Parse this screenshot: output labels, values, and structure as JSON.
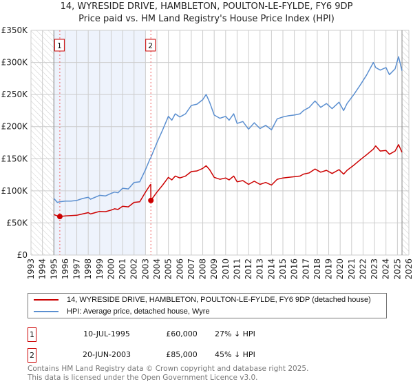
{
  "title_line1": "14, WYRESIDE DRIVE, HAMBLETON, POULTON-LE-FYLDE, FY6 9DP",
  "title_line2": "Price paid vs. HM Land Registry's House Price Index (HPI)",
  "chart_data": {
    "type": "line",
    "xlim": [
      1993,
      2026
    ],
    "ylim": [
      0,
      350000
    ],
    "x_ticks": [
      1993,
      1994,
      1995,
      1996,
      1997,
      1998,
      1999,
      2000,
      2001,
      2002,
      2003,
      2004,
      2005,
      2006,
      2007,
      2008,
      2009,
      2010,
      2011,
      2012,
      2013,
      2014,
      2015,
      2016,
      2017,
      2018,
      2019,
      2020,
      2021,
      2022,
      2023,
      2024,
      2025,
      2026
    ],
    "y_ticks": [
      0,
      50000,
      100000,
      150000,
      200000,
      250000,
      300000,
      350000
    ],
    "y_tick_labels": [
      "£0",
      "£50K",
      "£100K",
      "£150K",
      "£200K",
      "£250K",
      "£300K",
      "£350K"
    ],
    "grid": true,
    "data_range": [
      1995.0,
      2025.4
    ],
    "shaded_range": [
      1995.0,
      2003.0
    ],
    "colors": {
      "property": "#cc0000",
      "hpi": "#5b8fd0",
      "shade": "#eef3fc",
      "grid": "#cccccc"
    },
    "series": [
      {
        "name": "14, WYRESIDE DRIVE, HAMBLETON, POULTON-LE-FYLDE, FY6 9DP (detached house)",
        "x": [
          1995.0,
          1995.3,
          1995.52,
          1996,
          1996.5,
          1997,
          1997.5,
          1998,
          1998.2,
          1998.6,
          1999,
          1999.5,
          2000,
          2000.3,
          2000.6,
          2001,
          2001.5,
          2002,
          2002.5,
          2003,
          2003.4,
          2003.46,
          2003.47,
          2004,
          2004.5,
          2005,
          2005.3,
          2005.6,
          2006,
          2006.5,
          2007,
          2007.5,
          2008,
          2008.3,
          2008.6,
          2009,
          2009.5,
          2010,
          2010.3,
          2010.7,
          2011,
          2011.5,
          2012,
          2012.5,
          2013,
          2013.5,
          2014,
          2014.5,
          2015,
          2015.5,
          2016,
          2016.5,
          2016.8,
          2017.3,
          2017.8,
          2018.3,
          2018.8,
          2019.3,
          2019.9,
          2020.3,
          2020.6,
          2021.2,
          2021.8,
          2022.3,
          2022.9,
          2023.1,
          2023.5,
          2024,
          2024.3,
          2024.8,
          2025.1,
          2025.4
        ],
        "y": [
          63000,
          61000,
          60000,
          61000,
          61500,
          62000,
          64000,
          66000,
          64000,
          66000,
          68000,
          67500,
          70000,
          72000,
          71000,
          76000,
          75000,
          82000,
          83000,
          98000,
          109000,
          110000,
          85000,
          98000,
          109000,
          121000,
          117000,
          123000,
          120000,
          123000,
          130000,
          131000,
          135000,
          139000,
          133000,
          121000,
          118000,
          120000,
          117000,
          123000,
          114000,
          116000,
          110000,
          115000,
          110000,
          113000,
          109000,
          118000,
          120000,
          121000,
          122000,
          123000,
          126000,
          128000,
          134000,
          129000,
          132000,
          127000,
          133000,
          126000,
          132000,
          140000,
          149000,
          156000,
          165000,
          170000,
          162000,
          163000,
          157000,
          162000,
          172000,
          160000
        ]
      },
      {
        "name": "HPI: Average price, detached house, Wyre",
        "x": [
          1995.0,
          1995.3,
          1995.52,
          1996,
          1996.5,
          1997,
          1997.5,
          1998,
          1998.2,
          1998.6,
          1999,
          1999.5,
          2000,
          2000.3,
          2000.6,
          2001,
          2001.5,
          2002,
          2002.5,
          2003,
          2003.4,
          2003.46,
          2003.47,
          2004,
          2004.5,
          2005,
          2005.3,
          2005.6,
          2006,
          2006.5,
          2007,
          2007.5,
          2008,
          2008.3,
          2008.6,
          2009,
          2009.5,
          2010,
          2010.3,
          2010.7,
          2011,
          2011.5,
          2012,
          2012.5,
          2013,
          2013.5,
          2014,
          2014.5,
          2015,
          2015.5,
          2016,
          2016.5,
          2016.8,
          2017.3,
          2017.8,
          2018.3,
          2018.8,
          2019.3,
          2019.9,
          2020.3,
          2020.6,
          2021.2,
          2021.8,
          2022.3,
          2022.9,
          2023.1,
          2023.5,
          2024,
          2024.3,
          2024.8,
          2025.1,
          2025.4
        ],
        "y": [
          88000,
          82000,
          83000,
          84000,
          84000,
          85000,
          88000,
          90000,
          87000,
          90000,
          93000,
          92000,
          96000,
          98000,
          97000,
          104000,
          103000,
          113000,
          114000,
          133000,
          150000,
          151000,
          152000,
          175000,
          195000,
          216000,
          210000,
          220000,
          215000,
          220000,
          233000,
          235000,
          242000,
          250000,
          238000,
          218000,
          213000,
          216000,
          210000,
          220000,
          205000,
          208000,
          196000,
          206000,
          197000,
          202000,
          195000,
          212000,
          215000,
          217000,
          218000,
          220000,
          225000,
          230000,
          240000,
          230000,
          236000,
          228000,
          238000,
          225000,
          236000,
          250000,
          266000,
          280000,
          300000,
          292000,
          288000,
          292000,
          281000,
          290000,
          309000,
          287000
        ]
      }
    ],
    "sales": [
      {
        "label": "1",
        "x": 1995.52,
        "y": 60000
      },
      {
        "label": "2",
        "x": 2003.47,
        "y": 85000
      }
    ]
  },
  "legend": {
    "property": "14, WYRESIDE DRIVE, HAMBLETON, POULTON-LE-FYLDE, FY6 9DP (detached house)",
    "hpi": "HPI: Average price, detached house, Wyre"
  },
  "sales_table": [
    {
      "num": "1",
      "date": "10-JUL-1995",
      "price": "£60,000",
      "hpi": "27% ↓ HPI"
    },
    {
      "num": "2",
      "date": "20-JUN-2003",
      "price": "£85,000",
      "hpi": "45% ↓ HPI"
    }
  ],
  "footer": {
    "line1": "Contains HM Land Registry data © Crown copyright and database right 2025.",
    "line2": "This data is licensed under the Open Government Licence v3.0."
  }
}
